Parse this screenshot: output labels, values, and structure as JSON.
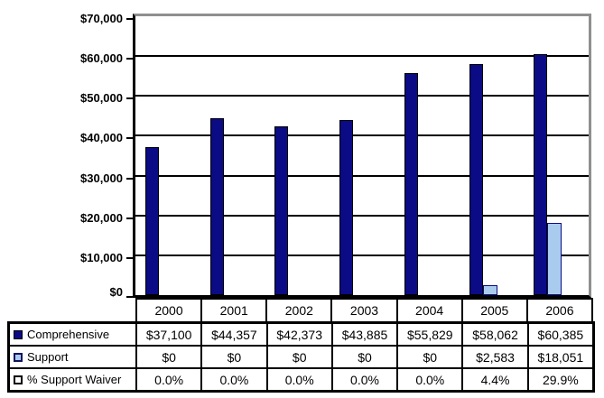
{
  "chart_data": {
    "type": "bar",
    "title": "",
    "xlabel": "",
    "ylabel": "",
    "categories": [
      "2000",
      "2001",
      "2002",
      "2003",
      "2004",
      "2005",
      "2006"
    ],
    "series": [
      {
        "name": "Comprehensive",
        "marker_icon": "navy-filled-square-icon",
        "color": "#0b0b85",
        "values": [
          37100,
          44357,
          42373,
          43885,
          55829,
          58062,
          60385
        ],
        "labels": [
          "$37,100",
          "$44,357",
          "$42,373",
          "$43,885",
          "$55,829",
          "$58,062",
          "$60,385"
        ]
      },
      {
        "name": "Support",
        "marker_icon": "lightblue-square-icon",
        "color": "#a9cbee",
        "values": [
          0,
          0,
          0,
          0,
          0,
          2583,
          18051
        ],
        "labels": [
          "$0",
          "$0",
          "$0",
          "$0",
          "$0",
          "$2,583",
          "$18,051"
        ]
      }
    ],
    "percent_row": {
      "name": "% Support Waiver",
      "marker_icon": "white-square-icon",
      "labels": [
        "0.0%",
        "0.0%",
        "0.0%",
        "0.0%",
        "0.0%",
        "4.4%",
        "29.9%"
      ]
    },
    "ylim": [
      0,
      70000
    ],
    "ytick_interval": 10000,
    "ytick_labels": [
      "$0",
      "$10,000",
      "$20,000",
      "$30,000",
      "$40,000",
      "$50,000",
      "$60,000",
      "$70,000"
    ],
    "grid": true,
    "legend_position": "table-left-column"
  },
  "colors": {
    "comprehensive_bar": "#0b0b85",
    "support_bar": "#a9cbee",
    "gridline": "#000000",
    "axis": "#000000",
    "plot_border_gray": "#8f8f8f",
    "table_border": "#000000",
    "background": "#ffffff"
  }
}
